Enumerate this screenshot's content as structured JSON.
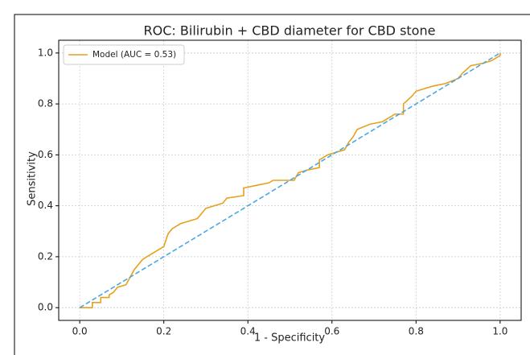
{
  "chart_data": {
    "type": "line",
    "title": "ROC: Bilirubin + CBD diameter for CBD stone",
    "x_label": "1 - Specificity",
    "y_label": "Sensitivity",
    "xlim": [
      -0.05,
      1.05
    ],
    "ylim": [
      -0.05,
      1.05
    ],
    "xticks": [
      {
        "value": 0,
        "label": "0.0"
      },
      0.2,
      0.4,
      0.6,
      0.8,
      {
        "value": 1,
        "label": "1.0"
      }
    ],
    "yticks": [
      {
        "value": 0,
        "label": "0.0"
      },
      0.2,
      0.4,
      0.6,
      0.8,
      {
        "value": 1,
        "label": "1.0"
      }
    ],
    "grid": true,
    "legend": "upper left",
    "series": [
      {
        "name": "Model (AUC = 0.53)",
        "color": "#e6a11a",
        "dash": false,
        "x": [
          0,
          0.03,
          0.03,
          0.05,
          0.05,
          0.07,
          0.07,
          0.08,
          0.09,
          0.11,
          0.12,
          0.13,
          0.14,
          0.15,
          0.17,
          0.19,
          0.2,
          0.21,
          0.22,
          0.24,
          0.26,
          0.28,
          0.29,
          0.3,
          0.32,
          0.34,
          0.35,
          0.39,
          0.39,
          0.42,
          0.45,
          0.46,
          0.51,
          0.52,
          0.54,
          0.57,
          0.57,
          0.59,
          0.61,
          0.63,
          0.64,
          0.65,
          0.66,
          0.69,
          0.72,
          0.75,
          0.77,
          0.77,
          0.79,
          0.8,
          0.82,
          0.84,
          0.87,
          0.9,
          0.91,
          0.93,
          0.96,
          0.98,
          1,
          1
        ],
        "y": [
          0,
          0,
          0.02,
          0.02,
          0.04,
          0.04,
          0.05,
          0.06,
          0.08,
          0.09,
          0.12,
          0.15,
          0.17,
          0.19,
          0.21,
          0.23,
          0.24,
          0.29,
          0.31,
          0.33,
          0.34,
          0.35,
          0.37,
          0.39,
          0.4,
          0.41,
          0.43,
          0.44,
          0.47,
          0.48,
          0.49,
          0.5,
          0.5,
          0.53,
          0.54,
          0.55,
          0.58,
          0.6,
          0.61,
          0.62,
          0.65,
          0.67,
          0.7,
          0.72,
          0.73,
          0.76,
          0.76,
          0.8,
          0.83,
          0.85,
          0.86,
          0.87,
          0.88,
          0.9,
          0.92,
          0.95,
          0.96,
          0.97,
          0.99,
          1
        ]
      },
      {
        "color": "#4aa8e0",
        "dash": true,
        "x": [
          0,
          1
        ],
        "y": [
          0,
          1
        ]
      }
    ]
  }
}
